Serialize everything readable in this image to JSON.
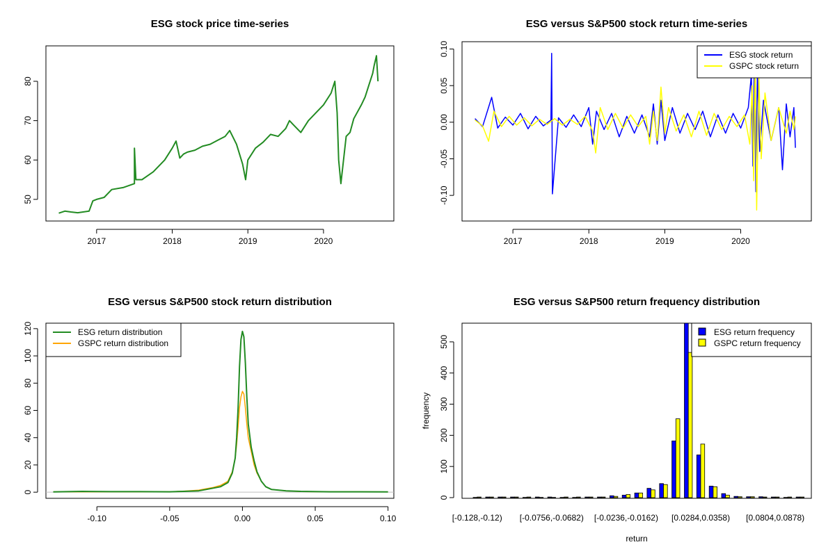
{
  "chart_data": [
    {
      "type": "line",
      "title": "ESG stock price time-series",
      "xlabel": "",
      "ylabel": "",
      "xlim": [
        2016.33,
        2020.93
      ],
      "ylim": [
        44.5,
        89
      ],
      "xticks": [
        2017,
        2018,
        2019,
        2020
      ],
      "yticks": [
        50,
        60,
        70,
        80
      ],
      "x_tick_labels": [
        "2017",
        "2018",
        "2019",
        "2020"
      ],
      "y_tick_labels": [
        "50",
        "60",
        "70",
        "80"
      ],
      "grid": false,
      "legend": "none",
      "series": [
        {
          "color": "#228B22",
          "x": [
            2016.5,
            2016.58,
            2016.66,
            2016.75,
            2016.9,
            2016.95,
            2017.0,
            2017.1,
            2017.2,
            2017.35,
            2017.5,
            2017.5,
            2017.52,
            2017.6,
            2017.75,
            2017.9,
            2018.0,
            2018.05,
            2018.1,
            2018.15,
            2018.2,
            2018.3,
            2018.4,
            2018.5,
            2018.6,
            2018.7,
            2018.76,
            2018.85,
            2018.93,
            2018.97,
            2019.0,
            2019.1,
            2019.2,
            2019.3,
            2019.4,
            2019.5,
            2019.55,
            2019.6,
            2019.7,
            2019.8,
            2019.9,
            2020.0,
            2020.1,
            2020.15,
            2020.18,
            2020.2,
            2020.23,
            2020.3,
            2020.35,
            2020.4,
            2020.5,
            2020.55,
            2020.6,
            2020.65,
            2020.67,
            2020.7,
            2020.72
          ],
          "y": [
            46.5,
            47.0,
            46.8,
            46.6,
            47.0,
            49.6,
            50.0,
            50.5,
            52.5,
            53.0,
            54.0,
            63.0,
            55.0,
            55.0,
            57.0,
            60.0,
            63.0,
            64.8,
            60.5,
            61.5,
            62.0,
            62.5,
            63.5,
            64.0,
            65.0,
            66.0,
            67.5,
            64.0,
            59.0,
            55.0,
            60.0,
            63.0,
            64.5,
            66.5,
            66.0,
            68.0,
            70.0,
            69.0,
            67.0,
            70.0,
            72.0,
            74.0,
            77.0,
            80.0,
            72.0,
            60.0,
            54.0,
            66.0,
            67.0,
            70.5,
            74.0,
            76.0,
            79.0,
            82.0,
            84.0,
            86.5,
            80.0
          ]
        }
      ]
    },
    {
      "type": "line",
      "title": "ESG versus S&P500 stock return time-series",
      "xlabel": "",
      "ylabel": "",
      "xlim": [
        2016.33,
        2020.93
      ],
      "ylim": [
        -0.135,
        0.11
      ],
      "xticks": [
        2017,
        2018,
        2019,
        2020
      ],
      "yticks": [
        -0.1,
        -0.05,
        0.0,
        0.05,
        0.1
      ],
      "x_tick_labels": [
        "2017",
        "2018",
        "2019",
        "2020"
      ],
      "y_tick_labels": [
        "-0.10",
        "-0.05",
        "0.00",
        "0.05",
        "0.10"
      ],
      "grid": false,
      "legend": "top-right",
      "series": [
        {
          "name": "ESG stock return",
          "color": "#0000FF",
          "x": [
            2016.5,
            2016.6,
            2016.72,
            2016.8,
            2016.9,
            2017.0,
            2017.1,
            2017.2,
            2017.3,
            2017.4,
            2017.5,
            2017.51,
            2017.52,
            2017.6,
            2017.7,
            2017.8,
            2017.9,
            2018.0,
            2018.05,
            2018.1,
            2018.2,
            2018.3,
            2018.4,
            2018.5,
            2018.6,
            2018.7,
            2018.8,
            2018.85,
            2018.9,
            2018.95,
            2019.0,
            2019.1,
            2019.2,
            2019.3,
            2019.4,
            2019.5,
            2019.6,
            2019.7,
            2019.8,
            2019.9,
            2020.0,
            2020.1,
            2020.14,
            2020.16,
            2020.18,
            2020.2,
            2020.22,
            2020.25,
            2020.3,
            2020.4,
            2020.5,
            2020.55,
            2020.6,
            2020.65,
            2020.7,
            2020.72
          ],
          "y": [
            0.005,
            -0.006,
            0.034,
            -0.008,
            0.007,
            -0.004,
            0.012,
            -0.009,
            0.008,
            -0.005,
            0.003,
            0.094,
            -0.098,
            0.006,
            -0.007,
            0.01,
            -0.006,
            0.02,
            -0.03,
            0.015,
            -0.01,
            0.012,
            -0.02,
            0.008,
            -0.015,
            0.01,
            -0.02,
            0.025,
            -0.03,
            0.03,
            -0.025,
            0.02,
            -0.015,
            0.012,
            -0.01,
            0.015,
            -0.02,
            0.01,
            -0.015,
            0.012,
            -0.008,
            0.02,
            0.065,
            -0.06,
            0.09,
            -0.095,
            0.07,
            -0.04,
            0.03,
            -0.025,
            0.02,
            -0.065,
            0.025,
            -0.02,
            0.02,
            -0.035
          ]
        },
        {
          "name": "GSPC stock return",
          "color": "#FFFF00",
          "x": [
            2016.5,
            2016.6,
            2016.68,
            2016.75,
            2016.85,
            2016.95,
            2017.05,
            2017.15,
            2017.25,
            2017.35,
            2017.45,
            2017.55,
            2017.65,
            2017.75,
            2017.85,
            2017.95,
            2018.05,
            2018.09,
            2018.15,
            2018.25,
            2018.35,
            2018.45,
            2018.55,
            2018.65,
            2018.75,
            2018.8,
            2018.85,
            2018.9,
            2018.95,
            2019.0,
            2019.05,
            2019.15,
            2019.25,
            2019.35,
            2019.45,
            2019.55,
            2019.65,
            2019.75,
            2019.85,
            2019.95,
            2020.05,
            2020.12,
            2020.15,
            2020.17,
            2020.19,
            2020.21,
            2020.24,
            2020.27,
            2020.32,
            2020.4,
            2020.5,
            2020.6,
            2020.65,
            2020.7,
            2020.72
          ],
          "y": [
            0.003,
            -0.005,
            -0.026,
            0.015,
            -0.006,
            0.008,
            -0.004,
            0.006,
            -0.005,
            0.004,
            -0.003,
            0.005,
            -0.004,
            0.004,
            -0.003,
            0.008,
            -0.012,
            -0.042,
            0.02,
            -0.01,
            0.012,
            -0.008,
            0.01,
            -0.006,
            0.008,
            -0.03,
            0.015,
            -0.025,
            0.048,
            -0.015,
            0.02,
            -0.012,
            0.01,
            -0.02,
            0.015,
            -0.018,
            0.012,
            -0.01,
            0.008,
            -0.006,
            0.01,
            -0.03,
            0.05,
            -0.08,
            0.09,
            -0.12,
            0.06,
            -0.05,
            0.04,
            -0.025,
            0.02,
            -0.015,
            0.015,
            -0.01,
            0.008
          ]
        }
      ]
    },
    {
      "type": "line",
      "title": "ESG versus S&P500 stock return distribution",
      "xlabel": "",
      "ylabel": "",
      "xlim": [
        -0.135,
        0.104
      ],
      "ylim": [
        -4.5,
        124
      ],
      "xticks": [
        -0.1,
        -0.05,
        0.0,
        0.05,
        0.1
      ],
      "yticks": [
        0,
        20,
        40,
        60,
        80,
        100,
        120
      ],
      "x_tick_labels": [
        "-0.10",
        "-0.05",
        "0.00",
        "0.05",
        "0.10"
      ],
      "y_tick_labels": [
        "0",
        "20",
        "40",
        "60",
        "80",
        "100",
        "120"
      ],
      "grid": false,
      "legend": "top-left",
      "series": [
        {
          "name": "ESG return distribution",
          "color": "#228B22",
          "x": [
            -0.13,
            -0.11,
            -0.09,
            -0.07,
            -0.05,
            -0.04,
            -0.03,
            -0.025,
            -0.02,
            -0.015,
            -0.01,
            -0.007,
            -0.005,
            -0.004,
            -0.003,
            -0.002,
            -0.001,
            0.0,
            0.001,
            0.002,
            0.003,
            0.004,
            0.006,
            0.008,
            0.01,
            0.013,
            0.016,
            0.02,
            0.025,
            0.03,
            0.04,
            0.06,
            0.08,
            0.1
          ],
          "y": [
            0.2,
            0.6,
            0.4,
            0.4,
            0.3,
            0.6,
            1.0,
            2.0,
            3.0,
            4.0,
            7.0,
            14.0,
            25.0,
            40.0,
            62.0,
            92.0,
            112.0,
            118.0,
            114.0,
            95.0,
            70.0,
            50.0,
            33.0,
            23.0,
            15.0,
            8.0,
            4.0,
            2.0,
            1.5,
            1.0,
            0.6,
            0.3,
            0.3,
            0.2
          ]
        },
        {
          "name": "GSPC return distribution",
          "color": "#FFA500",
          "x": [
            -0.13,
            -0.11,
            -0.09,
            -0.07,
            -0.05,
            -0.04,
            -0.03,
            -0.025,
            -0.02,
            -0.015,
            -0.01,
            -0.007,
            -0.005,
            -0.004,
            -0.003,
            -0.002,
            -0.001,
            0.0,
            0.001,
            0.002,
            0.003,
            0.004,
            0.006,
            0.008,
            0.01,
            0.013,
            0.016,
            0.02,
            0.025,
            0.03,
            0.04,
            0.06,
            0.08,
            0.1
          ],
          "y": [
            0.3,
            0.3,
            0.3,
            0.3,
            0.3,
            0.8,
            1.5,
            2.5,
            3.5,
            5.0,
            8.0,
            15.0,
            25.0,
            35.0,
            48.0,
            62.0,
            70.0,
            74.0,
            72.0,
            62.0,
            50.0,
            40.0,
            30.0,
            20.0,
            14.0,
            8.0,
            4.0,
            2.0,
            1.5,
            1.0,
            0.5,
            0.3,
            0.3,
            0.2
          ]
        }
      ]
    },
    {
      "type": "bar",
      "title": "ESG versus S&P500 return frequency distribution",
      "xlabel": "return",
      "ylabel": "frequency",
      "ylim": [
        0,
        560
      ],
      "yticks": [
        0,
        100,
        200,
        300,
        400,
        500
      ],
      "y_tick_labels": [
        "0",
        "100",
        "200",
        "300",
        "400",
        "500"
      ],
      "grid": false,
      "legend": "top-right",
      "categories": [
        "[-0.128,-0.12)",
        "",
        "",
        "",
        "",
        "",
        "[-0.0756,-0.0682)",
        "",
        "",
        "",
        "",
        "",
        "[-0.0236,-0.0162)",
        "",
        "",
        "",
        "",
        "",
        "[0.0284,0.0358)",
        "",
        "",
        "",
        "",
        "",
        "[0.0804,0.0878)",
        "",
        ""
      ],
      "series": [
        {
          "name": "ESG return frequency",
          "color": "#0000FF",
          "values": [
            1,
            2,
            2,
            2,
            1,
            2,
            2,
            1,
            1,
            2,
            2,
            6,
            8,
            15,
            30,
            45,
            182,
            560,
            137,
            37,
            13,
            4,
            3,
            3,
            2,
            1,
            2
          ]
        },
        {
          "name": "GSPC return frequency",
          "color": "#FFFF00",
          "values": [
            2,
            2,
            2,
            2,
            2,
            1,
            1,
            2,
            2,
            2,
            2,
            4,
            10,
            15,
            25,
            42,
            253,
            466,
            172,
            35,
            8,
            3,
            3,
            2,
            2,
            2,
            2
          ]
        }
      ]
    }
  ]
}
